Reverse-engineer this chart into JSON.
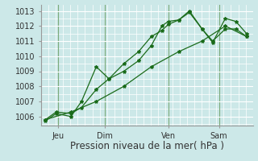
{
  "xlabel": "Pression niveau de la mer( hPa )",
  "bg_color": "#cce8e8",
  "grid_color": "#ffffff",
  "day_line_color": "#7aaa7a",
  "line_color": "#1a6b1a",
  "ylim": [
    1005.4,
    1013.4
  ],
  "xlim": [
    0.0,
    1.0
  ],
  "xtick_positions": [
    0.08,
    0.3,
    0.6,
    0.84
  ],
  "xtick_labels": [
    "Jeu",
    "Dim",
    "Ven",
    "Sam"
  ],
  "vline_positions": [
    0.08,
    0.3,
    0.6,
    0.84
  ],
  "ytick_positions": [
    1006,
    1007,
    1008,
    1009,
    1010,
    1011,
    1012,
    1013
  ],
  "line1_x": [
    0.02,
    0.07,
    0.14,
    0.19,
    0.26,
    0.32,
    0.39,
    0.46,
    0.52,
    0.57,
    0.6,
    0.65,
    0.7,
    0.76,
    0.81,
    0.87,
    0.92,
    0.97
  ],
  "line1_y": [
    1005.8,
    1006.3,
    1006.2,
    1006.6,
    1007.8,
    1008.5,
    1009.5,
    1010.3,
    1011.3,
    1011.7,
    1012.1,
    1012.4,
    1013.0,
    1011.8,
    1011.0,
    1011.8,
    1011.8,
    1011.3
  ],
  "line2_x": [
    0.02,
    0.07,
    0.14,
    0.19,
    0.26,
    0.32,
    0.39,
    0.46,
    0.52,
    0.57,
    0.6,
    0.65,
    0.7,
    0.76,
    0.81,
    0.87,
    0.92,
    0.97
  ],
  "line2_y": [
    1005.7,
    1006.2,
    1006.0,
    1007.0,
    1009.3,
    1008.5,
    1009.0,
    1009.7,
    1010.7,
    1012.0,
    1012.3,
    1012.4,
    1012.9,
    1011.8,
    1010.9,
    1012.5,
    1012.3,
    1011.5
  ],
  "line3_x": [
    0.02,
    0.14,
    0.26,
    0.39,
    0.52,
    0.65,
    0.76,
    0.87,
    0.97
  ],
  "line3_y": [
    1005.8,
    1006.3,
    1007.0,
    1008.0,
    1009.3,
    1010.3,
    1011.0,
    1012.0,
    1011.3
  ],
  "xlabel_fontsize": 8.5,
  "tick_fontsize": 7.0
}
